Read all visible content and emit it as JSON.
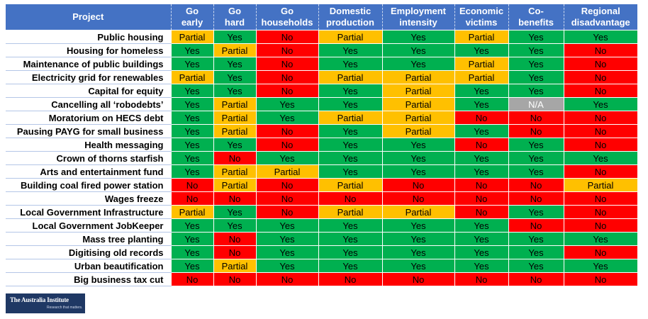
{
  "chart_data": {
    "type": "table",
    "columns": [
      "Project",
      "Go early",
      "Go hard",
      "Go households",
      "Domestic production",
      "Employment intensity",
      "Economic victims",
      "Co-benefits",
      "Regional disadvantage"
    ],
    "header_lines": [
      [
        "Project"
      ],
      [
        "Go",
        "early"
      ],
      [
        "Go",
        "hard"
      ],
      [
        "Go",
        "households"
      ],
      [
        "Domestic",
        "production"
      ],
      [
        "Employment",
        "intensity"
      ],
      [
        "Economic",
        "victims"
      ],
      [
        "Co-",
        "benefits"
      ],
      [
        "Regional",
        "disadvantage"
      ]
    ],
    "rows": [
      {
        "project": "Public housing",
        "values": [
          "Partial",
          "Yes",
          "No",
          "Partial",
          "Yes",
          "Partial",
          "Yes",
          "Yes"
        ]
      },
      {
        "project": "Housing for homeless",
        "values": [
          "Yes",
          "Partial",
          "No",
          "Yes",
          "Yes",
          "Yes",
          "Yes",
          "No"
        ]
      },
      {
        "project": "Maintenance of public buildings",
        "values": [
          "Yes",
          "Yes",
          "No",
          "Yes",
          "Yes",
          "Partial",
          "Yes",
          "No"
        ]
      },
      {
        "project": "Electricity grid for renewables",
        "values": [
          "Partial",
          "Yes",
          "No",
          "Partial",
          "Partial",
          "Partial",
          "Yes",
          "No"
        ]
      },
      {
        "project": "Capital for equity",
        "values": [
          "Yes",
          "Yes",
          "No",
          "Yes",
          "Partial",
          "Yes",
          "Yes",
          "No"
        ]
      },
      {
        "project": "Cancelling all ‘robodebts’",
        "values": [
          "Yes",
          "Partial",
          "Yes",
          "Yes",
          "Partial",
          "Yes",
          "N/A",
          "Yes"
        ]
      },
      {
        "project": "Moratorium on HECS debt",
        "values": [
          "Yes",
          "Partial",
          "Yes",
          "Partial",
          "Partial",
          "No",
          "No",
          "No"
        ]
      },
      {
        "project": "Pausing PAYG for small business",
        "values": [
          "Yes",
          "Partial",
          "No",
          "Yes",
          "Partial",
          "Yes",
          "No",
          "No"
        ]
      },
      {
        "project": "Health messaging",
        "values": [
          "Yes",
          "Yes",
          "No",
          "Yes",
          "Yes",
          "No",
          "Yes",
          "No"
        ]
      },
      {
        "project": "Crown of thorns starfish",
        "values": [
          "Yes",
          "No",
          "Yes",
          "Yes",
          "Yes",
          "Yes",
          "Yes",
          "Yes"
        ]
      },
      {
        "project": "Arts and entertainment fund",
        "values": [
          "Yes",
          "Partial",
          "Partial",
          "Yes",
          "Yes",
          "Yes",
          "Yes",
          "No"
        ]
      },
      {
        "project": "Building coal fired power station",
        "values": [
          "No",
          "Partial",
          "No",
          "Partial",
          "No",
          "No",
          "No",
          "Partial"
        ]
      },
      {
        "project": "Wages freeze",
        "values": [
          "No",
          "No",
          "No",
          "No",
          "No",
          "No",
          "No",
          "No"
        ]
      },
      {
        "project": "Local Government Infrastructure",
        "values": [
          "Partial",
          "Yes",
          "No",
          "Partial",
          "Partial",
          "No",
          "Yes",
          "No"
        ]
      },
      {
        "project": "Local Government JobKeeper",
        "values": [
          "Yes",
          "Yes",
          "Yes",
          "Yes",
          "Yes",
          "Yes",
          "No",
          "No"
        ]
      },
      {
        "project": "Mass tree planting",
        "values": [
          "Yes",
          "No",
          "Yes",
          "Yes",
          "Yes",
          "Yes",
          "Yes",
          "Yes"
        ]
      },
      {
        "project": "Digitising old records",
        "values": [
          "Yes",
          "No",
          "Yes",
          "Yes",
          "Yes",
          "Yes",
          "Yes",
          "No"
        ]
      },
      {
        "project": "Urban beautification",
        "values": [
          "Yes",
          "Partial",
          "Yes",
          "Yes",
          "Yes",
          "Yes",
          "Yes",
          "Yes"
        ]
      },
      {
        "project": "Big business tax cut",
        "values": [
          "No",
          "No",
          "No",
          "No",
          "No",
          "No",
          "No",
          "No"
        ]
      }
    ]
  },
  "colors": {
    "header": "#4472c4",
    "yes": "#00b050",
    "no": "#ff0000",
    "partial": "#ffc000",
    "na": "#a6a6a6"
  },
  "logo": {
    "name": "The Australia Institute",
    "tagline": "Research that matters."
  }
}
